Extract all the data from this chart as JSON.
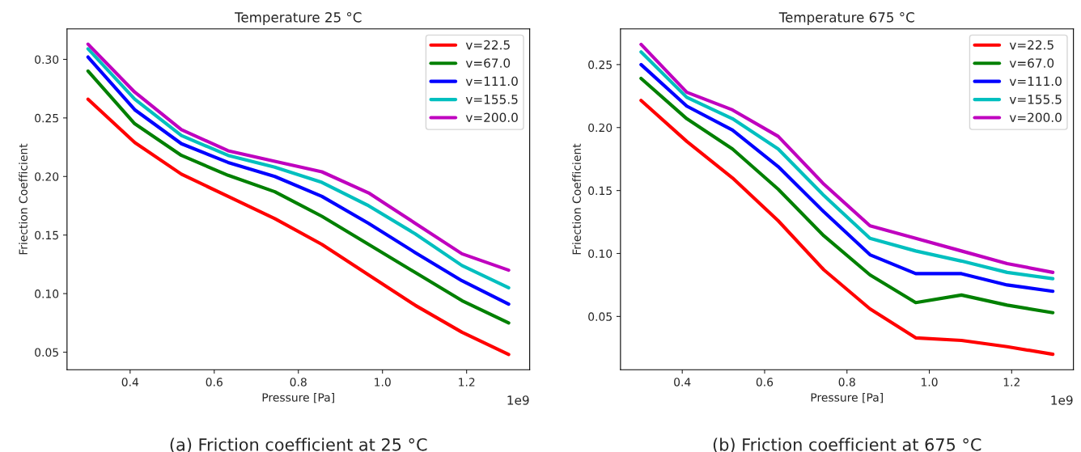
{
  "chart_data": [
    {
      "type": "line",
      "title": "Temperature 25 °C",
      "xlabel": "Pressure [Pa]",
      "ylabel": "Friection Coefficient",
      "x": [
        0.3,
        0.411,
        0.522,
        0.633,
        0.744,
        0.856,
        0.967,
        1.078,
        1.189,
        1.3
      ],
      "series": [
        {
          "name": "v=22.5",
          "color": "#ff0000",
          "values": [
            0.266,
            0.229,
            0.202,
            0.183,
            0.164,
            0.142,
            0.116,
            0.09,
            0.067,
            0.048
          ]
        },
        {
          "name": "v=67.0",
          "color": "#008000",
          "values": [
            0.29,
            0.245,
            0.218,
            0.201,
            0.187,
            0.166,
            0.142,
            0.118,
            0.094,
            0.075
          ]
        },
        {
          "name": "v=111.0",
          "color": "#0000ff",
          "values": [
            0.302,
            0.257,
            0.228,
            0.212,
            0.2,
            0.183,
            0.16,
            0.135,
            0.111,
            0.091
          ]
        },
        {
          "name": "v=155.5",
          "color": "#00bfbf",
          "values": [
            0.309,
            0.266,
            0.235,
            0.218,
            0.208,
            0.195,
            0.175,
            0.151,
            0.124,
            0.105
          ]
        },
        {
          "name": "v=200.0",
          "color": "#bf00bf",
          "values": [
            0.313,
            0.272,
            0.24,
            0.222,
            0.213,
            0.204,
            0.186,
            0.16,
            0.134,
            0.12
          ]
        }
      ],
      "xlim": [
        0.25,
        1.35
      ],
      "ylim": [
        0.035,
        0.326
      ],
      "xticks": [
        0.4,
        0.6,
        0.8,
        {
          "value": 1,
          "label": "1.0"
        },
        1.2
      ],
      "yticks": [
        {
          "value": 0.05,
          "label": "0.05"
        },
        {
          "value": 0.1,
          "label": "0.10"
        },
        {
          "value": 0.15,
          "label": "0.15"
        },
        {
          "value": 0.2,
          "label": "0.20"
        },
        {
          "value": 0.25,
          "label": "0.25"
        },
        {
          "value": 0.3,
          "label": "0.30"
        }
      ],
      "grid": false,
      "legend": "top right",
      "line_style": "solid",
      "marker": "none",
      "annotations": [
        "1e9",
        "(a) Friction coefficient at 25 °C"
      ]
    },
    {
      "type": "line",
      "title": "Temperature 675 °C",
      "xlabel": "Pressure [Pa]",
      "ylabel": "Friection Coefficient",
      "x": [
        0.3,
        0.411,
        0.522,
        0.633,
        0.744,
        0.856,
        0.967,
        1.078,
        1.189,
        1.3
      ],
      "series": [
        {
          "name": "v=22.5",
          "color": "#ff0000",
          "values": [
            0.2215,
            0.189,
            0.16,
            0.126,
            0.087,
            0.056,
            0.033,
            0.031,
            0.026,
            0.02
          ]
        },
        {
          "name": "v=67.0",
          "color": "#008000",
          "values": [
            0.239,
            0.207,
            0.183,
            0.151,
            0.114,
            0.083,
            0.061,
            0.067,
            0.059,
            0.053
          ]
        },
        {
          "name": "v=111.0",
          "color": "#0000ff",
          "values": [
            0.25,
            0.217,
            0.198,
            0.169,
            0.133,
            0.099,
            0.084,
            0.084,
            0.075,
            0.07
          ]
        },
        {
          "name": "v=155.5",
          "color": "#00bfbf",
          "values": [
            0.26,
            0.224,
            0.207,
            0.183,
            0.146,
            0.112,
            0.102,
            0.094,
            0.085,
            0.08
          ]
        },
        {
          "name": "v=200.0",
          "color": "#bf00bf",
          "values": [
            0.266,
            0.228,
            0.214,
            0.193,
            0.155,
            0.122,
            0.112,
            0.102,
            0.092,
            0.085
          ]
        }
      ],
      "xlim": [
        0.25,
        1.35
      ],
      "ylim": [
        0.0077,
        0.2783
      ],
      "xticks": [
        0.4,
        0.6,
        0.8,
        {
          "value": 1,
          "label": "1.0"
        },
        1.2
      ],
      "yticks": [
        {
          "value": 0.05,
          "label": "0.05"
        },
        {
          "value": 0.1,
          "label": "0.10"
        },
        {
          "value": 0.15,
          "label": "0.15"
        },
        {
          "value": 0.2,
          "label": "0.20"
        },
        {
          "value": 0.25,
          "label": "0.25"
        }
      ],
      "grid": false,
      "legend": "top right",
      "line_style": "solid",
      "marker": "none",
      "annotations": [
        "1e9",
        "(b) Friction coefficient at 675 °C"
      ]
    }
  ]
}
